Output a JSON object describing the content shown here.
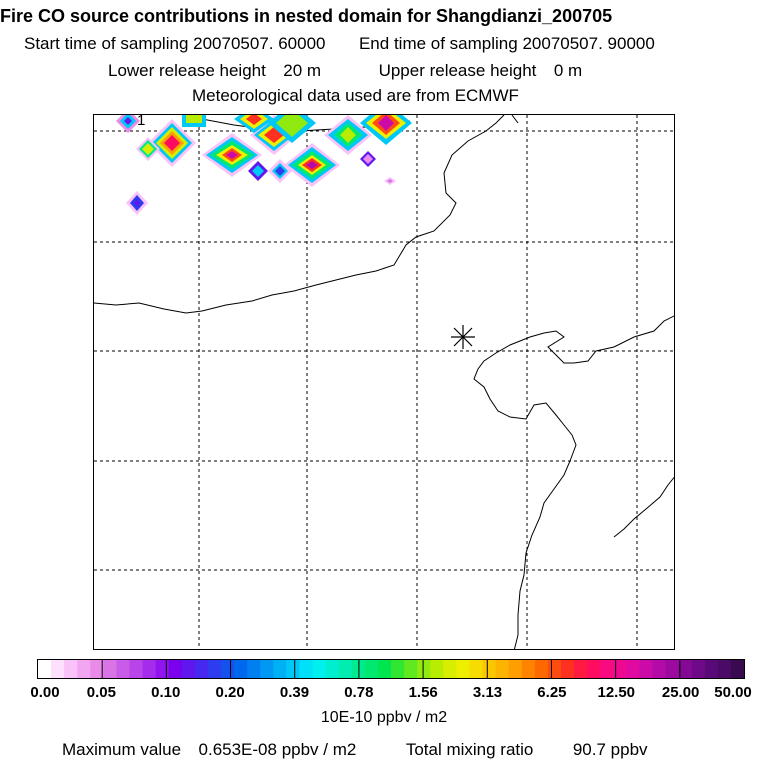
{
  "title": "Fire CO source contributions in nested domain for Shangdianzi_200705",
  "sampling": {
    "start_label": "Start time of sampling",
    "start_value": "20070507. 60000",
    "end_label": "End time of sampling",
    "end_value": "20070507. 90000"
  },
  "release": {
    "lower_label": "Lower release height",
    "lower_value": "20 m",
    "upper_label": "Upper release height",
    "upper_value": "0 m"
  },
  "meteo": "Meteorological data used are from ECMWF",
  "map": {
    "gridline_style": "dashed",
    "station_marker": "asterisk",
    "corner_label": "1"
  },
  "colorbar": {
    "tick_labels": [
      "0.00",
      "0.05",
      "0.10",
      "0.20",
      "0.39",
      "0.78",
      "1.56",
      "3.13",
      "6.25",
      "12.50",
      "25.00",
      "50.00"
    ],
    "unit": "10E-10 ppbv / m2",
    "colors": [
      "#ffffff",
      "#fde0fd",
      "#f9c2f9",
      "#f2a6f2",
      "#e98be9",
      "#d874e6",
      "#c85ce8",
      "#b844ea",
      "#a52cec",
      "#9113ee",
      "#7a00ee",
      "#6016ee",
      "#4628ee",
      "#2c3cee",
      "#1452ee",
      "#0068ee",
      "#0080f0",
      "#0098f2",
      "#00b0f4",
      "#00c8f6",
      "#00e0f8",
      "#00f0ee",
      "#00eed0",
      "#00ecb0",
      "#00ea90",
      "#00e870",
      "#00e650",
      "#30e630",
      "#60e820",
      "#90ea10",
      "#b8ec00",
      "#d8ee00",
      "#eeee00",
      "#f6dc00",
      "#fac800",
      "#fcb400",
      "#fe9e00",
      "#fe8400",
      "#fe6800",
      "#fe4c10",
      "#fe3020",
      "#fe1a40",
      "#fe0c60",
      "#fa0a80",
      "#ee0a90",
      "#e00aa0",
      "#cc0aa8",
      "#b40aa8",
      "#9c0aa0",
      "#840a96",
      "#6e0a88",
      "#5a0a78",
      "#4a0a66",
      "#3a0a50"
    ]
  },
  "footer": {
    "max_label": "Maximum value",
    "max_value": "0.653E-08 ppbv / m2",
    "total_label": "Total mixing ratio",
    "total_value": "90.7 ppbv"
  }
}
